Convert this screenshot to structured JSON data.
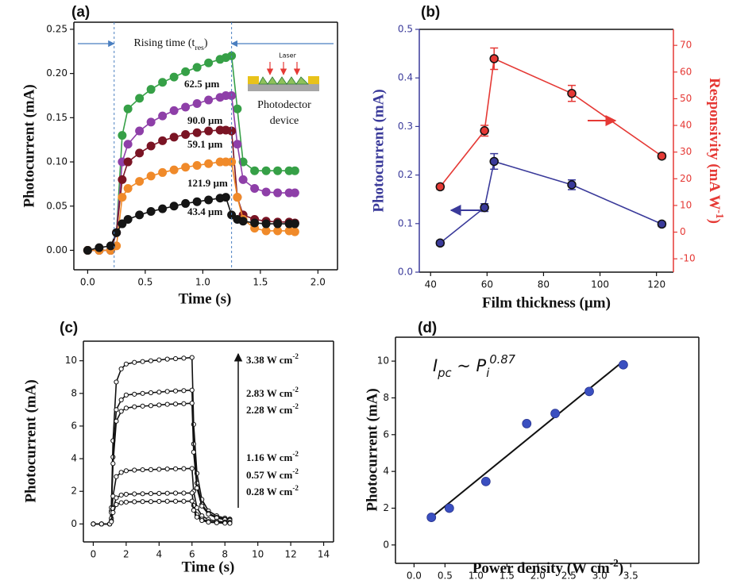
{
  "chart_data": [
    {
      "type": "line",
      "panel_label": "(a)",
      "xlabel": "Time (s)",
      "ylabel": "Photocurrent (mA)",
      "xlim": [
        -0.12,
        2.17
      ],
      "ylim": [
        -0.022,
        0.258
      ],
      "xticks": [
        {
          "value": 0,
          "label": "0.0"
        },
        {
          "value": 0.5,
          "label": "0.5"
        },
        {
          "value": 1,
          "label": "1.0"
        },
        {
          "value": 1.5,
          "label": "1.5"
        },
        {
          "value": 2,
          "label": "2.0"
        }
      ],
      "yticks": [
        {
          "value": 0,
          "label": "0.00"
        },
        {
          "value": 0.05,
          "label": "0.05"
        },
        {
          "value": 0.1,
          "label": "0.10"
        },
        {
          "value": 0.15,
          "label": "0.15"
        },
        {
          "value": 0.2,
          "label": "0.20"
        },
        {
          "value": 0.25,
          "label": "0.25"
        }
      ],
      "x": [
        0,
        0.1,
        0.2,
        0.25,
        0.3,
        0.35,
        0.45,
        0.55,
        0.65,
        0.75,
        0.85,
        0.95,
        1.05,
        1.15,
        1.2,
        1.25,
        1.3,
        1.35,
        1.45,
        1.55,
        1.65,
        1.75,
        1.8
      ],
      "series": [
        {
          "name": "62.5 µm",
          "color": "#36a047",
          "values": [
            0,
            0,
            0,
            0.02,
            0.13,
            0.16,
            0.172,
            0.182,
            0.19,
            0.196,
            0.202,
            0.207,
            0.212,
            0.216,
            0.218,
            0.22,
            0.16,
            0.1,
            0.09,
            0.09,
            0.09,
            0.09,
            0.09
          ]
        },
        {
          "name": "90.0 µm",
          "color": "#8e3fa8",
          "values": [
            0,
            0,
            0,
            0.02,
            0.1,
            0.12,
            0.135,
            0.145,
            0.152,
            0.158,
            0.162,
            0.166,
            0.17,
            0.173,
            0.175,
            0.175,
            0.12,
            0.08,
            0.07,
            0.066,
            0.065,
            0.065,
            0.065
          ]
        },
        {
          "name": "59.1 µm",
          "color": "#7a1424",
          "values": [
            0,
            0,
            0,
            0.02,
            0.08,
            0.1,
            0.11,
            0.118,
            0.124,
            0.128,
            0.131,
            0.133,
            0.135,
            0.136,
            0.136,
            0.135,
            0.06,
            0.04,
            0.035,
            0.033,
            0.032,
            0.032,
            0.031
          ]
        },
        {
          "name": "121.9 µm",
          "color": "#f08a2a",
          "values": [
            0,
            0,
            0,
            0.005,
            0.06,
            0.07,
            0.078,
            0.084,
            0.088,
            0.091,
            0.094,
            0.096,
            0.098,
            0.1,
            0.1,
            0.1,
            0.06,
            0.035,
            0.025,
            0.022,
            0.022,
            0.022,
            0.021
          ]
        },
        {
          "name": "43.4 µm",
          "color": "#151515",
          "values": [
            0,
            0.003,
            0.005,
            0.02,
            0.03,
            0.035,
            0.04,
            0.044,
            0.047,
            0.05,
            0.053,
            0.055,
            0.057,
            0.059,
            0.06,
            0.04,
            0.035,
            0.033,
            0.031,
            0.03,
            0.03,
            0.03,
            0.03
          ]
        }
      ],
      "rising_label": [
        {
          "t": "Rising time (t"
        },
        {
          "sub": "res"
        },
        {
          "t": ")"
        }
      ],
      "marker_lines_x": [
        0.23,
        1.25
      ],
      "inset_labels": [
        "Laser",
        "Photodector",
        "device"
      ]
    },
    {
      "type": "line",
      "panel_label": "(b)",
      "xlabel": "Film thickness (µm)",
      "ylabel": "Photocurrent (mA)",
      "y2label": [
        {
          "t": "Responsivity (mA W"
        },
        {
          "sup": "-1"
        },
        {
          "t": ")"
        }
      ],
      "y_color": "#3a3a9a",
      "y2_color": "#e53935",
      "xlim": [
        36,
        126
      ],
      "ylim": [
        0,
        0.5
      ],
      "y2lim": [
        -15,
        76
      ],
      "xticks": [
        40,
        60,
        80,
        100,
        120
      ],
      "yticks": [
        {
          "value": 0,
          "label": "0.0"
        },
        {
          "value": 0.1,
          "label": "0.1"
        },
        {
          "value": 0.2,
          "label": "0.2"
        },
        {
          "value": 0.3,
          "label": "0.3"
        },
        {
          "value": 0.4,
          "label": "0.4"
        },
        {
          "value": 0.5,
          "label": "0.5"
        }
      ],
      "y2ticks": [
        -10,
        0,
        10,
        20,
        30,
        40,
        50,
        60,
        70
      ],
      "x": [
        43.4,
        59.1,
        62.5,
        90,
        121.9
      ],
      "series": [
        {
          "color": "#3a3a9a",
          "values": [
            0.06,
            0.133,
            0.228,
            0.18,
            0.099
          ],
          "errors": [
            0.005,
            0.008,
            0.016,
            0.01,
            0.005
          ]
        },
        {
          "color": "#e53935",
          "axis": "y2",
          "values": [
            17,
            38,
            65,
            52,
            28.5
          ],
          "errors": [
            1,
            2,
            4,
            3,
            1
          ]
        }
      ]
    },
    {
      "type": "line",
      "panel_label": "(c)",
      "xlabel": "Time (s)",
      "ylabel": "Photocurrent (mA)",
      "xlim": [
        -0.6,
        14.6
      ],
      "ylim": [
        -1.1,
        11.2
      ],
      "marker_fill": "#ffffff",
      "xticks": [
        0,
        2,
        4,
        6,
        8,
        10,
        12,
        14
      ],
      "yticks": [
        0,
        2,
        4,
        6,
        8,
        10
      ],
      "x": [
        0,
        0.5,
        1,
        1.1,
        1.2,
        1.4,
        1.7,
        2,
        2.5,
        3,
        3.5,
        4,
        4.5,
        5,
        5.5,
        6,
        6.1,
        6.3,
        6.6,
        7,
        7.5,
        8,
        8.3
      ],
      "series": [
        {
          "name": "3.38 W cm",
          "name_sup": "-2",
          "color": "#111111",
          "values": [
            0,
            0,
            0,
            1.0,
            5.1,
            8.7,
            9.5,
            9.8,
            9.9,
            9.95,
            10.0,
            10.05,
            10.1,
            10.13,
            10.16,
            10.2,
            6.1,
            3.1,
            1.5,
            0.8,
            0.5,
            0.36,
            0.3
          ]
        },
        {
          "name": "2.83 W cm",
          "name_sup": "-2",
          "color": "#111111",
          "values": [
            0,
            0,
            0,
            0.8,
            4.1,
            7.0,
            7.6,
            7.9,
            7.95,
            8.0,
            8.04,
            8.08,
            8.12,
            8.15,
            8.17,
            8.2,
            4.9,
            2.5,
            1.2,
            0.66,
            0.41,
            0.29,
            0.25
          ]
        },
        {
          "name": "2.28 W cm",
          "name_sup": "-2",
          "color": "#111111",
          "values": [
            0,
            0,
            0,
            0.7,
            3.7,
            6.3,
            6.9,
            7.1,
            7.18,
            7.22,
            7.25,
            7.29,
            7.33,
            7.35,
            7.37,
            7.4,
            4.4,
            2.2,
            1.1,
            0.6,
            0.37,
            0.26,
            0.22
          ]
        },
        {
          "name": "1.16 W cm",
          "name_sup": "-2",
          "color": "#111111",
          "values": [
            0,
            0,
            0,
            0.34,
            1.7,
            2.9,
            3.16,
            3.26,
            3.3,
            3.32,
            3.33,
            3.35,
            3.37,
            3.38,
            3.39,
            3.4,
            2.0,
            1.0,
            0.5,
            0.27,
            0.17,
            0.12,
            0.1
          ]
        },
        {
          "name": "0.57 W cm",
          "name_sup": "-2",
          "color": "#111111",
          "values": [
            0,
            0,
            0,
            0.19,
            0.95,
            1.6,
            1.77,
            1.82,
            1.84,
            1.85,
            1.86,
            1.87,
            1.88,
            1.89,
            1.89,
            1.9,
            1.14,
            0.57,
            0.29,
            0.15,
            0.1,
            0.07,
            0.06
          ]
        },
        {
          "name": "0.28 W cm",
          "name_sup": "-2",
          "color": "#111111",
          "values": [
            0,
            0,
            0,
            0.14,
            0.7,
            1.19,
            1.3,
            1.34,
            1.36,
            1.37,
            1.37,
            1.38,
            1.39,
            1.39,
            1.39,
            1.4,
            0.84,
            0.42,
            0.21,
            0.11,
            0.07,
            0.05,
            0.04
          ]
        }
      ]
    },
    {
      "type": "scatter",
      "panel_label": "(d)",
      "ylabel": "Photocurrent (mA)",
      "xlabel": [
        {
          "t": "Power density (W cm"
        },
        {
          "sup": "-2"
        },
        {
          "t": ")"
        }
      ],
      "annotation": [
        {
          "t": "I"
        },
        {
          "sub": "pc"
        },
        {
          "t": " ~ P"
        },
        {
          "sub": "i"
        },
        {
          "sup": "0.87"
        }
      ],
      "xlim": [
        -0.3,
        4.6
      ],
      "ylim": [
        -1,
        11.3
      ],
      "color": "#3a4fc0",
      "xticks": [
        {
          "value": 0,
          "label": "0.0"
        },
        {
          "value": 0.5,
          "label": "0.5"
        },
        {
          "value": 1,
          "label": "1.0"
        },
        {
          "value": 1.5,
          "label": "1.5"
        },
        {
          "value": 2,
          "label": "2.0"
        },
        {
          "value": 2.5,
          "label": "2.5"
        },
        {
          "value": 3,
          "label": "3.0"
        },
        {
          "value": 3.5,
          "label": "3.5"
        }
      ],
      "yticks": [
        0,
        2,
        4,
        6,
        8,
        10
      ],
      "x": [
        0.28,
        0.57,
        1.16,
        1.82,
        2.28,
        2.83,
        3.38
      ],
      "values": [
        1.5,
        2.0,
        3.45,
        6.6,
        7.15,
        8.35,
        9.8
      ],
      "fit": {
        "color": "#111111",
        "x": [
          0.28,
          3.38
        ],
        "values": [
          1.5,
          10
        ]
      }
    }
  ]
}
